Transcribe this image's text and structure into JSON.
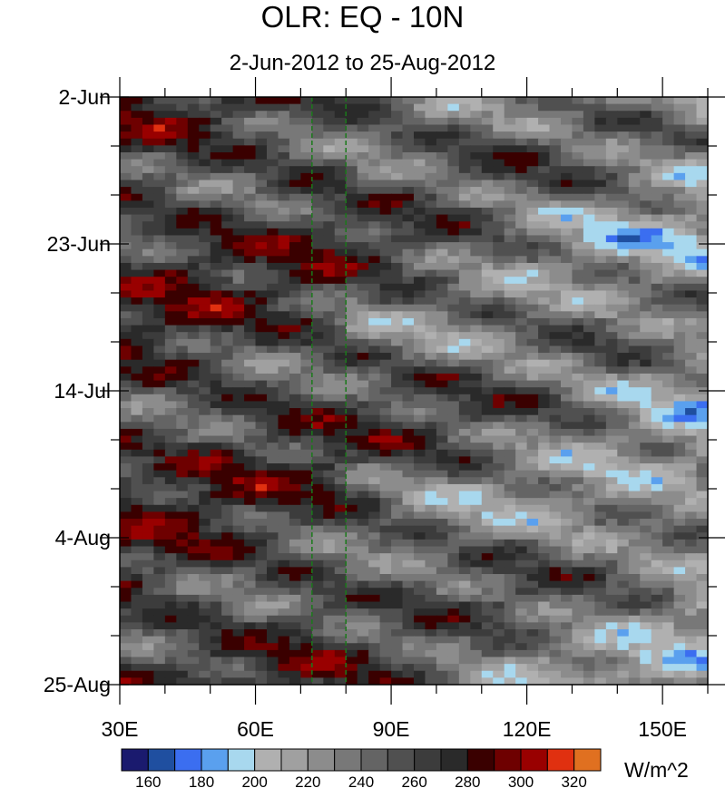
{
  "title": "OLR: EQ - 10N",
  "subtitle": "2-Jun-2012 to 25-Aug-2012",
  "chart_data": {
    "type": "heatmap",
    "title": "OLR: EQ - 10N",
    "subtitle": "2-Jun-2012 to 25-Aug-2012",
    "x_ticks": [
      "30E",
      "60E",
      "90E",
      "120E",
      "150E"
    ],
    "x_tick_values": [
      30,
      60,
      90,
      120,
      150
    ],
    "xlim": [
      30,
      160
    ],
    "y_ticks": [
      "2-Jun",
      "23-Jun",
      "14-Jul",
      "4-Aug",
      "25-Aug"
    ],
    "ylim": [
      "2012-06-02",
      "2012-08-25"
    ],
    "colorbar": {
      "unit": "W/m^2",
      "labels": [
        "160",
        "180",
        "200",
        "220",
        "240",
        "260",
        "280",
        "300",
        "320"
      ],
      "levels": [
        150,
        160,
        170,
        180,
        190,
        200,
        210,
        220,
        230,
        240,
        250,
        260,
        270,
        280,
        290,
        300,
        310,
        320,
        330
      ],
      "colors": [
        "#1a1a6e",
        "#1f4fa0",
        "#3b6ef0",
        "#5aa0ee",
        "#a8d8ee",
        "#b0b0b0",
        "#a0a0a0",
        "#8c8c8c",
        "#787878",
        "#646464",
        "#505050",
        "#3c3c3c",
        "#2a2a2a",
        "#3a0000",
        "#6e0000",
        "#990000",
        "#e03010",
        "#e07020"
      ]
    },
    "reference_lines_lon": [
      72.5,
      80
    ]
  }
}
